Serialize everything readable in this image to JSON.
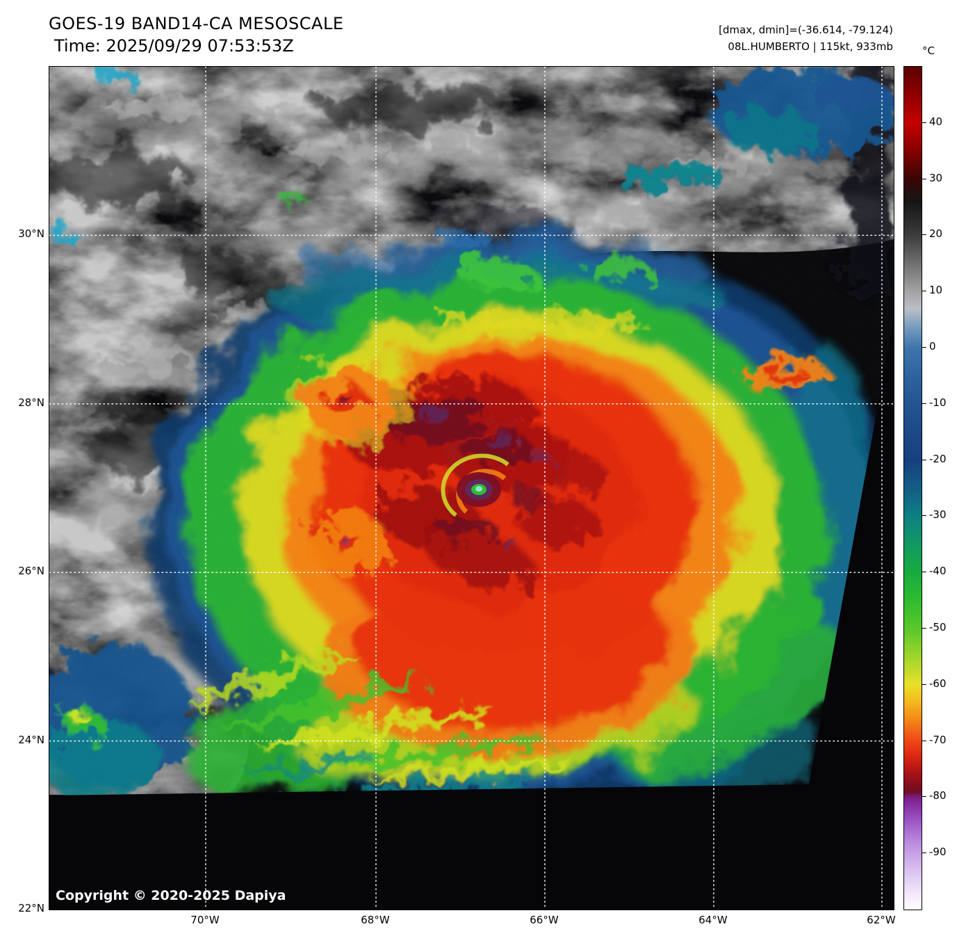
{
  "header": {
    "title": "GOES-19 BAND14-CA MESOSCALE",
    "time": "Time: 2025/09/29 07:53:53Z",
    "dmax_dmin": "[dmax, dmin]=(-36.614, -79.124)",
    "storm_info": "08L.HUMBERTO | 115kt, 933mb"
  },
  "map": {
    "copyright": "Copyright © 2020-2025 Dapiya",
    "lat_labels": [
      "30°N",
      "28°N",
      "26°N",
      "24°N",
      "22°N"
    ],
    "lon_labels": [
      "70°W",
      "68°W",
      "66°W",
      "64°W",
      "62°W"
    ]
  },
  "colorbar": {
    "unit": "°C",
    "domain": [
      50,
      -100
    ],
    "ticks": [
      40,
      30,
      20,
      10,
      0,
      -10,
      -20,
      -30,
      -40,
      -50,
      -60,
      -70,
      -80,
      -90
    ],
    "gradient": [
      [
        0,
        "#5c0000"
      ],
      [
        3.3,
        "#8f0000"
      ],
      [
        6.7,
        "#c40000"
      ],
      [
        9.5,
        "#900000"
      ],
      [
        13.3,
        "#3a0404"
      ],
      [
        16,
        "#161616"
      ],
      [
        20,
        "#3c3c3c"
      ],
      [
        23.3,
        "#6f6f6f"
      ],
      [
        26.7,
        "#a3a3a3"
      ],
      [
        28.7,
        "#b9bfc6"
      ],
      [
        30.7,
        "#7d9fc0"
      ],
      [
        33.3,
        "#3f75ab"
      ],
      [
        36.7,
        "#2e63a0"
      ],
      [
        40,
        "#245591"
      ],
      [
        43.3,
        "#1c4a87"
      ],
      [
        46.7,
        "#17407e"
      ],
      [
        50,
        "#135e85"
      ],
      [
        53.3,
        "#0e7f83"
      ],
      [
        56.7,
        "#119a62"
      ],
      [
        60,
        "#17ab3f"
      ],
      [
        63.3,
        "#2fbc2f"
      ],
      [
        66.7,
        "#5ac72b"
      ],
      [
        70,
        "#9ed62a"
      ],
      [
        73.3,
        "#e8e02a"
      ],
      [
        75.3,
        "#f5b91f"
      ],
      [
        77.3,
        "#f58b18"
      ],
      [
        80,
        "#ef4716"
      ],
      [
        82,
        "#d92313"
      ],
      [
        84,
        "#a31117"
      ],
      [
        86,
        "#6f0d22"
      ],
      [
        86.8,
        "#7c1f8f"
      ],
      [
        89.3,
        "#9b52c4"
      ],
      [
        92,
        "#b98ade"
      ],
      [
        94.7,
        "#d4b6ee"
      ],
      [
        97.3,
        "#ecdcf8"
      ],
      [
        100,
        "#ffffff"
      ]
    ]
  }
}
